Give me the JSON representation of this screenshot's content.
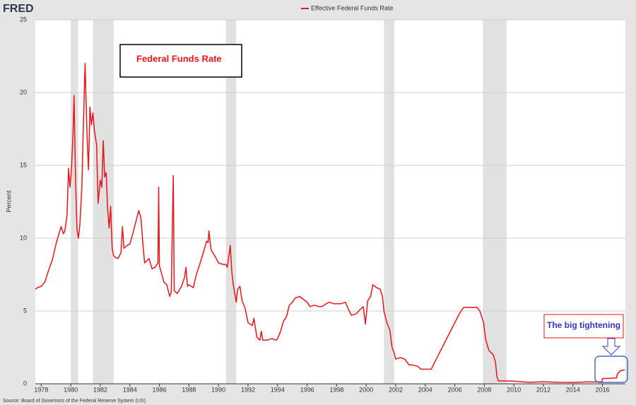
{
  "chart_data": {
    "type": "line",
    "logo": "FRED",
    "ylabel": "Percent",
    "source": "Source: Board of Governors of the Federal Reserve System (US)",
    "annotations": [
      "Federal Funds Rate",
      "The big tightening"
    ],
    "xlim": [
      1977.6,
      2017.55
    ],
    "ylim": [
      0,
      25
    ],
    "xticks": [
      1978,
      1980,
      1982,
      1984,
      1986,
      1988,
      1990,
      1992,
      1994,
      1996,
      1998,
      2000,
      2002,
      2004,
      2006,
      2008,
      2010,
      2012,
      2014,
      2016
    ],
    "yticks": [
      0,
      5,
      10,
      15,
      20,
      25
    ],
    "grid": true,
    "recessions": [
      [
        1980.0,
        1980.5
      ],
      [
        1981.5,
        1982.9
      ],
      [
        1990.5,
        1991.2
      ],
      [
        2001.2,
        2001.9
      ],
      [
        2007.9,
        2009.5
      ]
    ],
    "recession_color": "#e1e1e1",
    "x": [
      1977.6,
      1977.75,
      1978.0,
      1978.25,
      1978.5,
      1978.75,
      1979.0,
      1979.2,
      1979.35,
      1979.5,
      1979.6,
      1979.75,
      1979.85,
      1979.95,
      1980.05,
      1980.15,
      1980.22,
      1980.32,
      1980.42,
      1980.52,
      1980.62,
      1980.75,
      1980.85,
      1980.97,
      1981.1,
      1981.2,
      1981.3,
      1981.4,
      1981.5,
      1981.6,
      1981.75,
      1981.85,
      1982.0,
      1982.1,
      1982.2,
      1982.3,
      1982.4,
      1982.5,
      1982.6,
      1982.7,
      1982.8,
      1982.9,
      1983.0,
      1983.2,
      1983.4,
      1983.5,
      1983.6,
      1983.8,
      1984.0,
      1984.2,
      1984.4,
      1984.6,
      1984.75,
      1984.9,
      1985.0,
      1985.3,
      1985.5,
      1985.7,
      1985.9,
      1985.95,
      1986.0,
      1986.3,
      1986.5,
      1986.7,
      1986.8,
      1986.94,
      1987.0,
      1987.2,
      1987.5,
      1987.7,
      1987.8,
      1987.9,
      1988.0,
      1988.3,
      1988.5,
      1988.7,
      1989.0,
      1989.2,
      1989.3,
      1989.35,
      1989.5,
      1989.8,
      1990.0,
      1990.3,
      1990.5,
      1990.6,
      1990.8,
      1990.9,
      1991.0,
      1991.2,
      1991.3,
      1991.45,
      1991.6,
      1991.8,
      1992.0,
      1992.3,
      1992.4,
      1992.6,
      1992.8,
      1992.9,
      1993.0,
      1993.3,
      1993.6,
      1993.9,
      1994.0,
      1994.2,
      1994.4,
      1994.6,
      1994.8,
      1995.0,
      1995.2,
      1995.5,
      1995.75,
      1996.0,
      1996.2,
      1996.5,
      1996.8,
      1997.0,
      1997.3,
      1997.5,
      1997.8,
      1998.0,
      1998.3,
      1998.6,
      1998.8,
      1999.0,
      1999.3,
      1999.6,
      1999.8,
      1999.95,
      2000.1,
      2000.3,
      2000.45,
      2000.7,
      2000.95,
      2001.1,
      2001.2,
      2001.4,
      2001.6,
      2001.75,
      2001.9,
      2002.0,
      2002.3,
      2002.6,
      2002.9,
      2003.1,
      2003.5,
      2003.7,
      2004.0,
      2004.4,
      2004.6,
      2004.9,
      2005.2,
      2005.5,
      2005.9,
      2006.3,
      2006.6,
      2007.0,
      2007.5,
      2007.7,
      2007.85,
      2007.95,
      2008.1,
      2008.3,
      2008.6,
      2008.75,
      2008.85,
      2008.95,
      2009.2,
      2010.0,
      2011.0,
      2012.0,
      2013.0,
      2014.0,
      2015.0,
      2015.95,
      2016.0,
      2016.5,
      2016.95,
      2017.0,
      2017.2,
      2017.5
    ],
    "series": [
      {
        "name": "Effective Federal Funds Rate",
        "color": "#e8151b",
        "values": [
          6.5,
          6.6,
          6.7,
          7.0,
          7.8,
          8.5,
          9.6,
          10.3,
          10.8,
          10.3,
          10.5,
          11.6,
          14.8,
          13.5,
          14.8,
          17.2,
          19.8,
          14.0,
          10.6,
          10.0,
          11.0,
          13.5,
          17.6,
          22.0,
          17.0,
          14.7,
          19.0,
          17.8,
          18.6,
          17.4,
          16.4,
          12.4,
          14.0,
          13.5,
          16.7,
          14.2,
          14.5,
          11.9,
          10.7,
          12.2,
          9.3,
          8.8,
          8.7,
          8.6,
          9.0,
          10.8,
          9.3,
          9.5,
          9.6,
          10.3,
          11.1,
          11.9,
          11.4,
          9.4,
          8.3,
          8.6,
          7.9,
          8.0,
          8.3,
          13.5,
          8.1,
          7.0,
          6.8,
          6.0,
          6.3,
          14.3,
          6.4,
          6.2,
          6.7,
          7.3,
          8.0,
          6.7,
          6.8,
          6.6,
          7.5,
          8.1,
          9.1,
          9.8,
          9.7,
          10.5,
          9.2,
          8.7,
          8.3,
          8.2,
          8.2,
          8.0,
          9.5,
          7.7,
          6.8,
          5.6,
          6.5,
          6.7,
          5.7,
          5.2,
          4.2,
          4.0,
          4.5,
          3.2,
          3.0,
          3.6,
          3.0,
          3.0,
          3.1,
          3.0,
          3.1,
          3.6,
          4.3,
          4.6,
          5.4,
          5.6,
          5.9,
          6.0,
          5.8,
          5.6,
          5.3,
          5.4,
          5.3,
          5.3,
          5.5,
          5.6,
          5.5,
          5.5,
          5.5,
          5.6,
          5.1,
          4.7,
          4.8,
          5.1,
          5.3,
          4.1,
          5.7,
          6.0,
          6.8,
          6.6,
          6.5,
          6.0,
          5.0,
          4.2,
          3.7,
          2.5,
          2.1,
          1.7,
          1.8,
          1.7,
          1.3,
          1.3,
          1.2,
          1.0,
          1.0,
          1.0,
          1.4,
          2.0,
          2.6,
          3.2,
          4.0,
          4.8,
          5.25,
          5.25,
          5.25,
          5.0,
          4.5,
          4.2,
          3.0,
          2.3,
          2.0,
          1.5,
          0.5,
          0.2,
          0.2,
          0.18,
          0.1,
          0.14,
          0.1,
          0.09,
          0.13,
          0.12,
          0.36,
          0.38,
          0.4,
          0.66,
          0.9,
          0.95
        ]
      }
    ]
  }
}
